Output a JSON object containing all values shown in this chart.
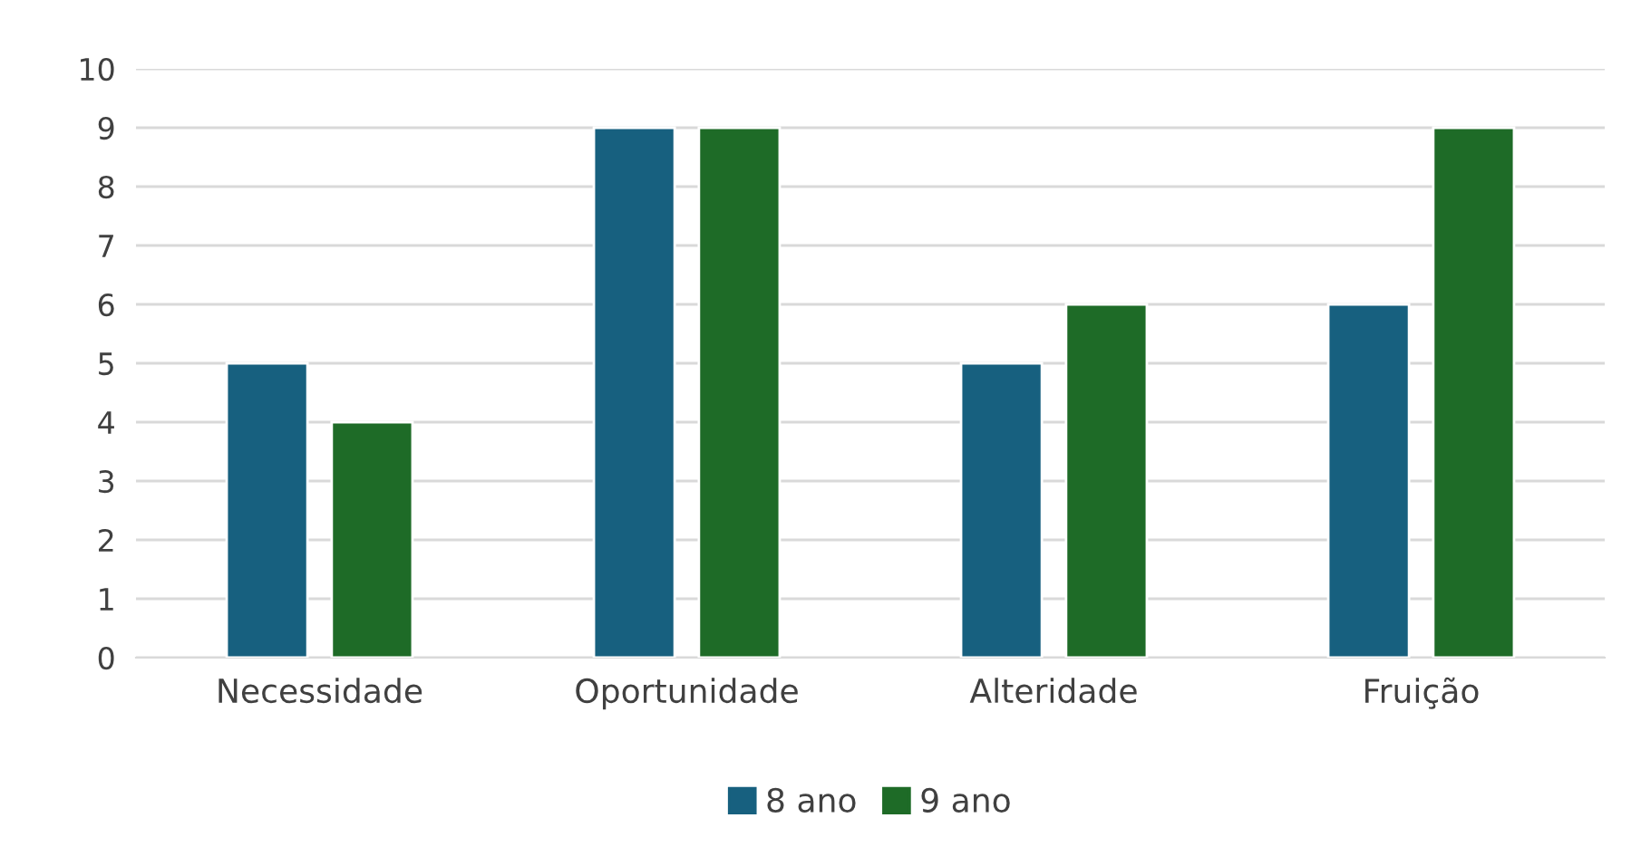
{
  "chart_data": {
    "type": "bar",
    "categories": [
      "Necessidade",
      "Oportunidade",
      "Alteridade",
      "Fruição"
    ],
    "series": [
      {
        "name": "8 ano",
        "color": "#17607f",
        "values": [
          5,
          9,
          5,
          6
        ]
      },
      {
        "name": "9 ano",
        "color": "#1e6b27",
        "values": [
          4,
          9,
          6,
          9
        ]
      }
    ],
    "ylim": [
      0,
      10
    ],
    "yticks": [
      0,
      1,
      2,
      3,
      4,
      5,
      6,
      7,
      8,
      9,
      10
    ],
    "grid": "y",
    "legend": "bottom"
  }
}
